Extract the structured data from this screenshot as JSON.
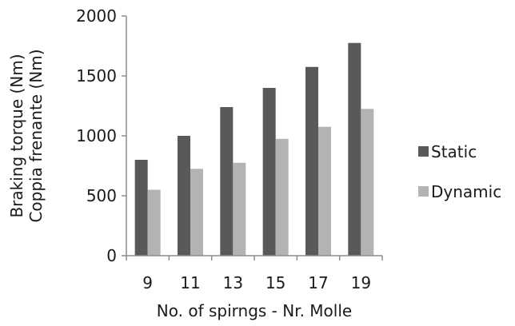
{
  "chart_data": {
    "type": "bar",
    "categories": [
      "9",
      "11",
      "13",
      "15",
      "17",
      "19"
    ],
    "series": [
      {
        "name": "Static",
        "color": "#595959",
        "values": [
          800,
          1000,
          1240,
          1400,
          1575,
          1775
        ]
      },
      {
        "name": "Dynamic",
        "color": "#b3b3b3",
        "values": [
          550,
          725,
          775,
          975,
          1075,
          1225
        ]
      }
    ],
    "xlabel": "No. of spirngs - Nr. Molle",
    "ylabel_lines": [
      "Braking torque (Nm)",
      "Coppia frenante (Nm)"
    ],
    "ylim": [
      0,
      2000
    ],
    "yticks": [
      0,
      500,
      1000,
      1500,
      2000
    ],
    "grid": false,
    "legend": "right"
  }
}
